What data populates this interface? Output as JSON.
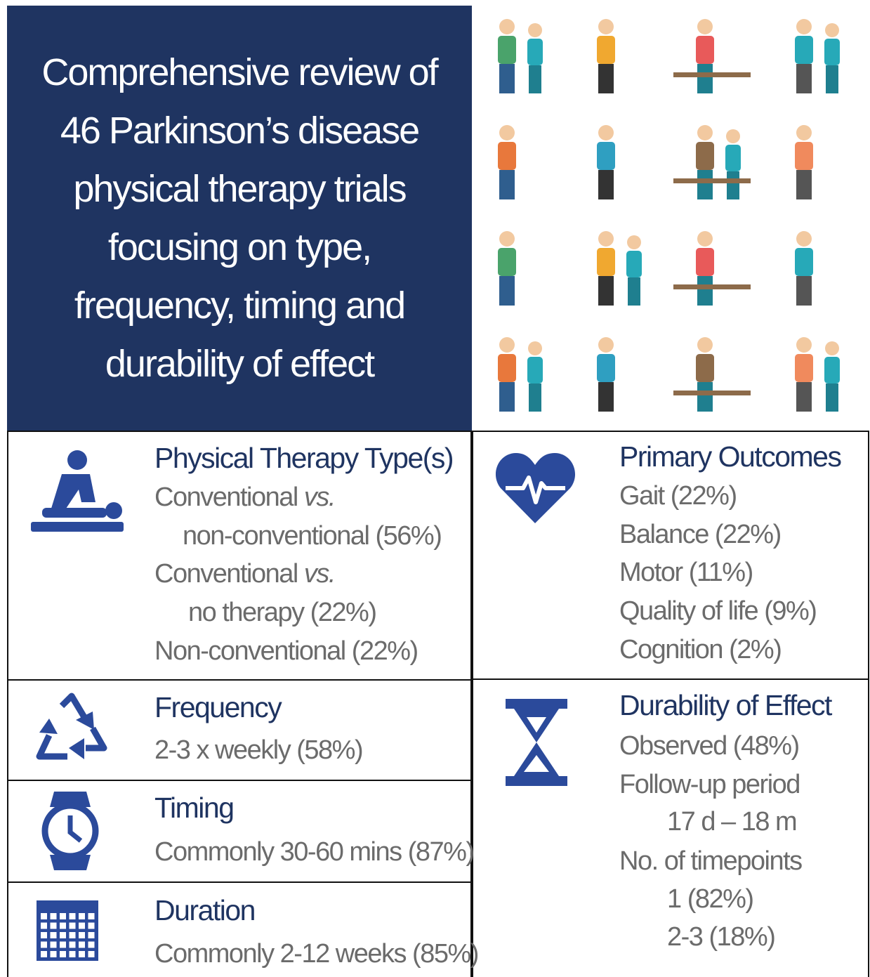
{
  "header": {
    "title_lines": [
      "Comprehensive review of",
      "46 Parkinson’s disease",
      "physical therapy trials",
      "focusing on type,",
      "frequency, timing and",
      "durability of effect"
    ]
  },
  "panels": {
    "therapy_type": {
      "heading": "Physical Therapy Type(s)",
      "lines": [
        {
          "text": "Conventional",
          "emphasis": "vs."
        },
        {
          "text": "non-conventional (56%)"
        },
        {
          "text": "Conventional",
          "emphasis": "vs."
        },
        {
          "text": "no therapy (22%)"
        },
        {
          "text": "Non-conventional (22%)"
        }
      ]
    },
    "primary_outcomes": {
      "heading": "Primary Outcomes",
      "lines": [
        "Gait (22%)",
        "Balance (22%)",
        "Motor (11%)",
        "Quality of life (9%)",
        "Cognition (2%)"
      ]
    },
    "frequency": {
      "heading": "Frequency",
      "lines": [
        "2-3 x weekly (58%)"
      ]
    },
    "timing": {
      "heading": "Timing",
      "lines": [
        "Commonly 30-60 mins (87%)"
      ]
    },
    "duration": {
      "heading": "Duration",
      "lines": [
        "Commonly 2-12 weeks (85%)"
      ]
    },
    "durability": {
      "heading": "Durability of Effect",
      "lines": [
        "Observed (48%)",
        "Follow-up period",
        "17 d – 18 m",
        "No. of timepoints",
        "1 (82%)",
        "2-3 (18%)"
      ]
    }
  }
}
